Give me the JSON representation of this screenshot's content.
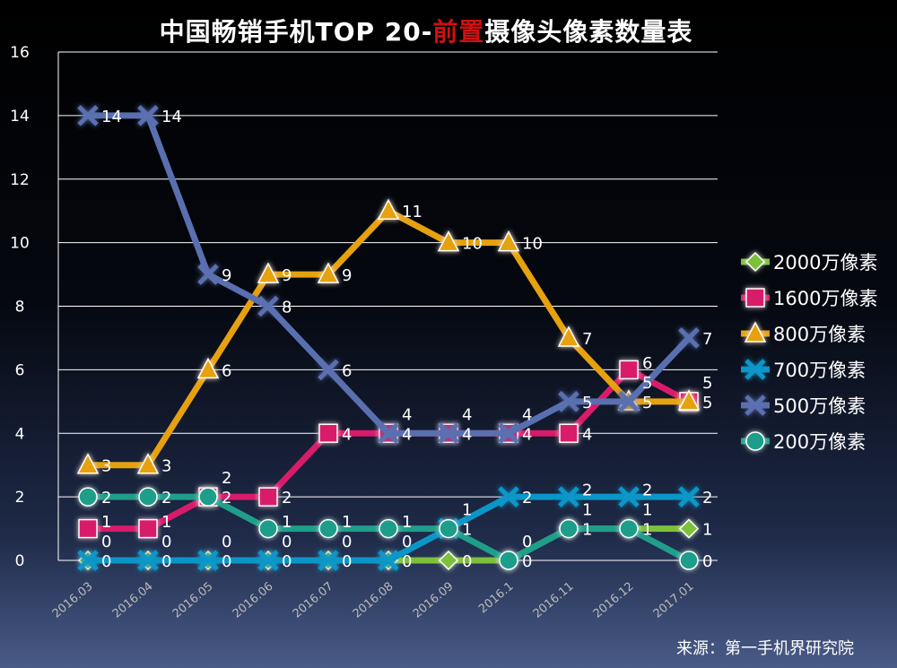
{
  "chart_data": {
    "type": "line",
    "title_parts": [
      "中国畅销手机TOP 20-",
      "前置",
      "摄像头像素数量表"
    ],
    "categories": [
      "2016.03",
      "2016.04",
      "2016.05",
      "2016.06",
      "2016.07",
      "2016.08",
      "2016.09",
      "2016.1",
      "2016.11",
      "2016.12",
      "2017.01"
    ],
    "ylim": [
      0,
      16
    ],
    "yticks": [
      0,
      2,
      4,
      6,
      8,
      10,
      12,
      14,
      16
    ],
    "grid": true,
    "legend": "right",
    "series": [
      {
        "name": "2000万像素",
        "color": "#7dc03a",
        "marker": "diamond",
        "values": [
          0,
          0,
          0,
          0,
          0,
          0,
          0,
          0,
          1,
          1,
          1
        ]
      },
      {
        "name": "1600万像素",
        "color": "#d81b6a",
        "marker": "square",
        "values": [
          1,
          1,
          2,
          2,
          4,
          4,
          4,
          4,
          4,
          6,
          5
        ]
      },
      {
        "name": "800万像素",
        "color": "#e6a10f",
        "marker": "triangle",
        "values": [
          3,
          3,
          6,
          9,
          9,
          11,
          10,
          10,
          7,
          5,
          5
        ]
      },
      {
        "name": "700万像素",
        "color": "#0b96c8",
        "marker": "x",
        "values": [
          0,
          0,
          0,
          0,
          0,
          0,
          1,
          2,
          2,
          2,
          2
        ]
      },
      {
        "name": "500万像素",
        "color": "#5a6fb0",
        "marker": "x",
        "values": [
          14,
          14,
          9,
          8,
          6,
          4,
          4,
          4,
          5,
          5,
          7
        ]
      },
      {
        "name": "200万像素",
        "color": "#1f9e8a",
        "marker": "circle",
        "values": [
          2,
          2,
          2,
          1,
          1,
          1,
          1,
          0,
          1,
          1,
          0
        ]
      }
    ]
  },
  "source": "来源：第一手机界研究院"
}
